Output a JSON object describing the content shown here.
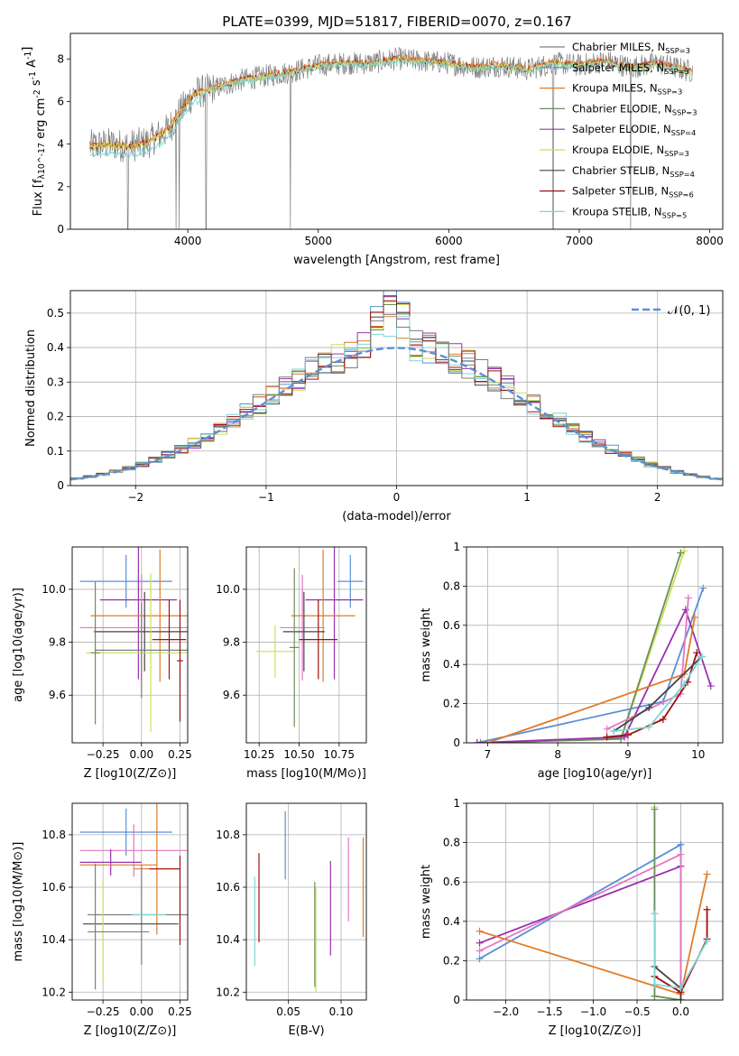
{
  "figure": {
    "title": "PLATE=0399, MJD=51817, FIBERID=0070, z=0.167"
  },
  "colors": {
    "chabrier_miles": "#7f7f7f",
    "salpeter_miles": "#5b8fd6",
    "kroupa_miles": "#e07b28",
    "chabrier_elodie": "#6a8f5a",
    "salpeter_elodie": "#9b30b0",
    "kroupa_elodie": "#c8e05a",
    "chabrier_stelib": "#444444",
    "salpeter_stelib": "#a01010",
    "kroupa_stelib": "#7fd6d6",
    "pink": "#e377c2",
    "grid": "#b0b0b0"
  },
  "chart_data": [
    {
      "id": "spectrum",
      "type": "line",
      "title": "PLATE=0399, MJD=51817, FIBERID=0070, z=0.167",
      "xlabel": "wavelength [Angstrom, rest frame]",
      "ylabel": "Flux [f_λ10^-17 erg cm^-2 s^-1 A^-1]",
      "xlim": [
        3100,
        8100
      ],
      "ylim": [
        0,
        9.2
      ],
      "xticks": [
        4000,
        5000,
        6000,
        7000,
        8000
      ],
      "yticks": [
        0,
        2,
        4,
        6,
        8
      ],
      "grid": false,
      "legend_position": "right",
      "legend": [
        "Chabrier MILES, N_SSP=3",
        "Salpeter MILES, N_SSP=3",
        "Kroupa MILES, N_SSP=3",
        "Chabrier ELODIE, N_SSP=3",
        "Salpeter ELODIE, N_SSP=4",
        "Kroupa ELODIE, N_SSP=3",
        "Chabrier STELIB, N_SSP=4",
        "Salpeter STELIB, N_SSP=6",
        "Kroupa STELIB, N_SSP=5"
      ],
      "continuum": {
        "x": [
          3250,
          3400,
          3550,
          3700,
          3850,
          3950,
          4050,
          4200,
          4400,
          4600,
          4800,
          5000,
          5200,
          5400,
          5600,
          5800,
          6000,
          6200,
          6400,
          6600,
          6800,
          7000,
          7200,
          7400,
          7600,
          7800,
          7870
        ],
        "y": [
          3.9,
          4.0,
          3.9,
          4.1,
          4.7,
          5.6,
          6.4,
          6.6,
          7.0,
          7.2,
          7.4,
          7.7,
          7.8,
          7.8,
          8.0,
          7.9,
          7.8,
          7.6,
          7.7,
          7.5,
          7.8,
          7.7,
          7.9,
          7.6,
          7.8,
          7.5,
          7.4
        ]
      },
      "absorption_lines_x": [
        3540,
        3910,
        3935,
        4140,
        4785,
        6800,
        7395
      ]
    },
    {
      "id": "residuals",
      "type": "area",
      "xlabel": "(data-model)/error",
      "ylabel": "Normed distribution",
      "xlim": [
        -2.5,
        2.5
      ],
      "ylim": [
        0,
        0.565
      ],
      "xticks": [
        -2,
        -1,
        0,
        1,
        2
      ],
      "yticks": [
        0.0,
        0.1,
        0.2,
        0.3,
        0.4,
        0.5
      ],
      "grid": true,
      "legend": [
        "𝒩(0, 1)"
      ],
      "legend_position": "top-right",
      "bin_width": 0.1
    },
    {
      "id": "age-vs-Z",
      "type": "scatter",
      "xlabel": "Z [log10(Z/Z⊙)]",
      "ylabel": "age [log10(age/yr)]",
      "xlim": [
        -0.45,
        0.3
      ],
      "ylim": [
        9.42,
        10.16
      ],
      "xticks": [
        -0.25,
        0.0,
        0.25
      ],
      "yticks": [
        9.6,
        9.8,
        10.0
      ],
      "xticklabels": [
        "−0.25",
        "0.00",
        "0.25"
      ],
      "yticklabels": [
        "9.6",
        "9.8",
        "10.0"
      ],
      "grid": true,
      "points": [
        {
          "x": -0.1,
          "y": 10.03,
          "xerr": 0.3,
          "yerr": 0.1,
          "color": "salpeter_miles"
        },
        {
          "x": -0.02,
          "y": 9.96,
          "xerr": 0.25,
          "yerr": 0.3,
          "color": "salpeter_elodie"
        },
        {
          "x": 0.12,
          "y": 9.9,
          "xerr": 0.45,
          "yerr": 0.25,
          "color": "kroupa_miles"
        },
        {
          "x": 0.0,
          "y": 9.855,
          "xerr": 0.4,
          "yerr": 0.2,
          "color": "pink"
        },
        {
          "x": 0.02,
          "y": 9.84,
          "xerr": 0.33,
          "yerr": 0.15,
          "color": "chabrier_stelib"
        },
        {
          "x": 0.18,
          "y": 9.81,
          "xerr": 0.11,
          "yerr": 0.15,
          "color": "salpeter_stelib"
        },
        {
          "x": 0.06,
          "y": 9.76,
          "xerr": 0.42,
          "yerr": 0.3,
          "color": "kroupa_elodie"
        },
        {
          "x": 0.0,
          "y": 9.77,
          "xerr": 0.3,
          "yerr": 0.18,
          "color": "chabrier_miles"
        },
        {
          "x": -0.3,
          "y": 9.76,
          "xerr": 0.03,
          "yerr": 0.27,
          "color": "chabrier_elodie"
        },
        {
          "x": 0.25,
          "y": 9.73,
          "xerr": 0.02,
          "yerr": 0.23,
          "color": "salpeter_stelib"
        }
      ]
    },
    {
      "id": "age-vs-mass",
      "type": "scatter",
      "xlabel": "mass [log10(M/M⊙)]",
      "xlim": [
        10.17,
        10.92
      ],
      "ylim": [
        9.42,
        10.16
      ],
      "xticks": [
        10.25,
        10.5,
        10.75
      ],
      "yticks": [
        9.6,
        9.8,
        10.0
      ],
      "xticklabels": [
        "10.25",
        "10.50",
        "10.75"
      ],
      "yticklabels": [
        "9.6",
        "9.8",
        "10.0"
      ],
      "grid": true,
      "points": [
        {
          "x": 10.82,
          "y": 10.03,
          "xerr": 0.08,
          "yerr": 0.1,
          "color": "salpeter_miles"
        },
        {
          "x": 10.72,
          "y": 9.96,
          "xerr": 0.18,
          "yerr": 0.3,
          "color": "salpeter_elodie"
        },
        {
          "x": 10.65,
          "y": 9.9,
          "xerr": 0.2,
          "yerr": 0.25,
          "color": "kroupa_miles"
        },
        {
          "x": 10.52,
          "y": 9.855,
          "xerr": 0.14,
          "yerr": 0.2,
          "color": "pink"
        },
        {
          "x": 10.53,
          "y": 9.84,
          "xerr": 0.13,
          "yerr": 0.15,
          "color": "chabrier_stelib"
        },
        {
          "x": 10.62,
          "y": 9.81,
          "xerr": 0.12,
          "yerr": 0.15,
          "color": "salpeter_stelib"
        },
        {
          "x": 10.35,
          "y": 9.765,
          "xerr": 0.12,
          "yerr": 0.1,
          "color": "kroupa_elodie"
        },
        {
          "x": 10.47,
          "y": 9.78,
          "xerr": 0.03,
          "yerr": 0.3,
          "color": "chabrier_elodie"
        }
      ]
    },
    {
      "id": "massweight-vs-age",
      "type": "line",
      "xlabel": "age [log10(age/yr)]",
      "ylabel": "mass weight",
      "xlim": [
        6.7,
        10.35
      ],
      "ylim": [
        0,
        1.0
      ],
      "xticks": [
        7,
        8,
        9,
        10
      ],
      "yticks": [
        0.0,
        0.2,
        0.4,
        0.6,
        0.8,
        1.0
      ],
      "grid": true,
      "series": [
        {
          "color": "kroupa_elodie",
          "x": [
            6.9,
            8.9,
            9.8
          ],
          "y": [
            0.0,
            0.02,
            0.98
          ]
        },
        {
          "color": "chabrier_elodie",
          "x": [
            6.9,
            8.9,
            9.75
          ],
          "y": [
            0.0,
            0.02,
            0.97
          ]
        },
        {
          "color": "salpeter_miles",
          "x": [
            6.85,
            9.5,
            10.07
          ],
          "y": [
            0.0,
            0.21,
            0.79
          ]
        },
        {
          "color": "salpeter_elodie",
          "x": [
            6.85,
            8.95,
            9.82,
            10.18
          ],
          "y": [
            0.0,
            0.03,
            0.68,
            0.29
          ]
        },
        {
          "color": "pink",
          "x": [
            8.7,
            9.75,
            9.86
          ],
          "y": [
            0.07,
            0.25,
            0.74
          ]
        },
        {
          "color": "kroupa_miles",
          "x": [
            7.0,
            9.8,
            9.95
          ],
          "y": [
            0.0,
            0.35,
            0.64
          ]
        },
        {
          "color": "salpeter_stelib",
          "x": [
            8.7,
            9.0,
            9.5,
            9.85,
            9.98
          ],
          "y": [
            0.03,
            0.04,
            0.12,
            0.31,
            0.46
          ]
        },
        {
          "color": "chabrier_stelib",
          "x": [
            8.8,
            9.3,
            10.05
          ],
          "y": [
            0.06,
            0.18,
            0.44
          ]
        },
        {
          "color": "kroupa_stelib",
          "x": [
            8.8,
            9.3,
            9.8,
            10.05
          ],
          "y": [
            0.06,
            0.08,
            0.3,
            0.44
          ]
        }
      ]
    },
    {
      "id": "mass-vs-Z",
      "type": "scatter",
      "xlabel": "Z [log10(Z/Z⊙)]",
      "ylabel": "mass [log10(M/M⊙)]",
      "xlim": [
        -0.45,
        0.3
      ],
      "ylim": [
        10.17,
        10.92
      ],
      "xticks": [
        -0.25,
        0.0,
        0.25
      ],
      "yticks": [
        10.2,
        10.4,
        10.6,
        10.8
      ],
      "xticklabels": [
        "−0.25",
        "0.00",
        "0.25"
      ],
      "yticklabels": [
        "10.2",
        "10.4",
        "10.6",
        "10.8"
      ],
      "grid": true,
      "points": [
        {
          "x": -0.1,
          "y": 10.81,
          "xerr": 0.3,
          "yerr": 0.09,
          "color": "salpeter_miles"
        },
        {
          "x": -0.05,
          "y": 10.74,
          "xerr": 0.35,
          "yerr": 0.1,
          "color": "pink"
        },
        {
          "x": -0.2,
          "y": 10.695,
          "xerr": 0.2,
          "yerr": 0.05,
          "color": "salpeter_elodie"
        },
        {
          "x": -0.15,
          "y": 10.685,
          "xerr": 0.25,
          "yerr": 0.0,
          "color": "kroupa_miles"
        },
        {
          "x": 0.1,
          "y": 10.67,
          "xerr": 0.15,
          "yerr": 0.25,
          "color": "kroupa_miles"
        },
        {
          "x": 0.15,
          "y": 10.67,
          "xerr": 0.1,
          "yerr": 0.0,
          "color": "salpeter_stelib"
        },
        {
          "x": 0.0,
          "y": 10.495,
          "xerr": 0.35,
          "yerr": 0.19,
          "color": "chabrier_miles"
        },
        {
          "x": -0.07,
          "y": 10.46,
          "xerr": 0.31,
          "yerr": 0.0,
          "color": "chabrier_stelib"
        },
        {
          "x": -0.25,
          "y": 10.43,
          "xerr": 0.1,
          "yerr": 0.19,
          "color": "kroupa_elodie"
        },
        {
          "x": -0.15,
          "y": 10.43,
          "xerr": 0.2,
          "yerr": 0.0,
          "color": "chabrier_miles"
        },
        {
          "x": -0.3,
          "y": 10.45,
          "xerr": 0.0,
          "yerr": 0.24,
          "color": "chabrier_elodie"
        },
        {
          "x": 0.25,
          "y": 10.55,
          "xerr": 0.0,
          "yerr": 0.17,
          "color": "salpeter_stelib"
        },
        {
          "x": 0.05,
          "y": 10.495,
          "xerr": 0.11,
          "yerr": 0.0,
          "color": "kroupa_stelib"
        }
      ]
    },
    {
      "id": "mass-vs-EBV",
      "type": "scatter",
      "xlabel": "E(B-V)",
      "xlim": [
        0.01,
        0.124
      ],
      "ylim": [
        10.17,
        10.92
      ],
      "xticks": [
        0.05,
        0.1
      ],
      "yticks": [
        10.2,
        10.4,
        10.6,
        10.8
      ],
      "xticklabels": [
        "0.05",
        "0.10"
      ],
      "yticklabels": [
        "10.2",
        "10.4",
        "10.6",
        "10.8"
      ],
      "grid": true,
      "points": [
        {
          "x": 0.047,
          "y": 10.76,
          "xerr": 0,
          "yerr": 0.13,
          "color": "salpeter_miles"
        },
        {
          "x": 0.09,
          "y": 10.52,
          "xerr": 0,
          "yerr": 0.18,
          "color": "salpeter_elodie"
        },
        {
          "x": 0.121,
          "y": 10.6,
          "xerr": 0,
          "yerr": 0.19,
          "color": "kroupa_miles"
        },
        {
          "x": 0.107,
          "y": 10.63,
          "xerr": 0,
          "yerr": 0.16,
          "color": "pink"
        },
        {
          "x": 0.075,
          "y": 10.42,
          "xerr": 0,
          "yerr": 0.2,
          "color": "chabrier_elodie"
        },
        {
          "x": 0.076,
          "y": 10.4,
          "xerr": 0,
          "yerr": 0.2,
          "color": "kroupa_elodie"
        },
        {
          "x": 0.022,
          "y": 10.56,
          "xerr": 0,
          "yerr": 0.17,
          "color": "salpeter_stelib"
        },
        {
          "x": 0.018,
          "y": 10.47,
          "xerr": 0,
          "yerr": 0.17,
          "color": "kroupa_stelib"
        }
      ]
    },
    {
      "id": "massweight-vs-Z",
      "type": "line",
      "xlabel": "Z [log10(Z/Z⊙)]",
      "ylabel": "mass weight",
      "xlim": [
        -2.45,
        0.48
      ],
      "ylim": [
        0,
        1.0
      ],
      "xticks": [
        -2.0,
        -1.5,
        -1.0,
        -0.5,
        0.0
      ],
      "xticklabels": [
        "−2.0",
        "−1.5",
        "−1.0",
        "−0.5",
        "0.0"
      ],
      "yticks": [
        0.0,
        0.2,
        0.4,
        0.6,
        0.8,
        1.0
      ],
      "grid": true,
      "series": [
        {
          "color": "salpeter_miles",
          "x": [
            -2.3,
            0.0,
            0.0
          ],
          "y": [
            0.21,
            0.79,
            0.06
          ]
        },
        {
          "color": "salpeter_elodie",
          "x": [
            -2.3,
            0.0,
            0.0
          ],
          "y": [
            0.29,
            0.68,
            0.03
          ]
        },
        {
          "color": "pink",
          "x": [
            -2.3,
            0.0,
            0.0
          ],
          "y": [
            0.25,
            0.74,
            0.03
          ]
        },
        {
          "color": "kroupa_miles",
          "x": [
            -2.3,
            0.0,
            0.3,
            0.0
          ],
          "y": [
            0.35,
            0.03,
            0.64,
            0.03
          ]
        },
        {
          "color": "kroupa_elodie",
          "x": [
            -0.3,
            -0.3,
            0.0
          ],
          "y": [
            0.98,
            0.02,
            0.0
          ]
        },
        {
          "color": "chabrier_elodie",
          "x": [
            -0.3,
            -0.3,
            0.0
          ],
          "y": [
            0.97,
            0.02,
            0.0
          ]
        },
        {
          "color": "chabrier_stelib",
          "x": [
            -0.3,
            -0.3,
            0.0,
            0.0
          ],
          "y": [
            0.44,
            0.17,
            0.06,
            0.0
          ]
        },
        {
          "color": "salpeter_stelib",
          "x": [
            0.3,
            0.3,
            0.0,
            -0.3
          ],
          "y": [
            0.46,
            0.31,
            0.04,
            0.12
          ]
        },
        {
          "color": "kroupa_stelib",
          "x": [
            -0.3,
            -0.3,
            0.0,
            0.3
          ],
          "y": [
            0.44,
            0.08,
            0.06,
            0.3
          ]
        }
      ]
    }
  ]
}
